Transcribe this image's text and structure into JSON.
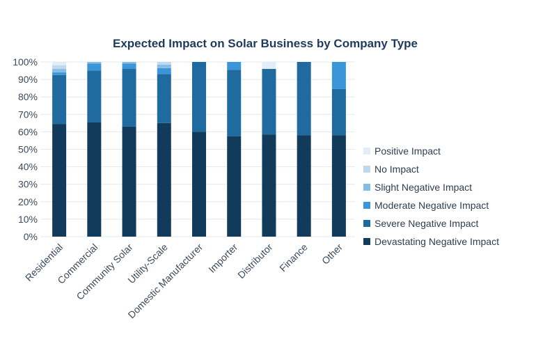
{
  "chart_data": {
    "type": "bar",
    "stacked": true,
    "title": "Expected Impact on Solar Business by Company Type",
    "xlabel": "",
    "ylabel": "",
    "ylim": [
      0,
      100
    ],
    "yticks": [
      "0%",
      "10%",
      "20%",
      "30%",
      "40%",
      "50%",
      "60%",
      "70%",
      "80%",
      "90%",
      "100%"
    ],
    "categories": [
      "Residential",
      "Commercial",
      "Community Solar",
      "Utility-Scale",
      "Domestic Manufacturer",
      "Importer",
      "Distributor",
      "Finance",
      "Other"
    ],
    "series": [
      {
        "name": "Devastating Negative Impact",
        "color": "#123a5a",
        "values": [
          64.5,
          65.5,
          63,
          65,
          60,
          57.5,
          58.5,
          58,
          58
        ]
      },
      {
        "name": "Severe Negative Impact",
        "color": "#1f6a9e",
        "values": [
          28,
          29.5,
          33,
          28,
          40,
          38,
          37.5,
          42,
          26.5
        ]
      },
      {
        "name": "Moderate Negative Impact",
        "color": "#3a96d8",
        "values": [
          1.5,
          4,
          3,
          3.5,
          0,
          4.5,
          0,
          0,
          15.5
        ]
      },
      {
        "name": "Slight Negative Impact",
        "color": "#86bde5",
        "values": [
          2,
          1,
          1,
          2,
          0,
          0,
          0,
          0,
          0
        ]
      },
      {
        "name": "No Impact",
        "color": "#bcd9ef",
        "values": [
          2,
          0,
          0,
          1.5,
          0,
          0,
          0,
          0,
          0
        ]
      },
      {
        "name": "Positive Impact",
        "color": "#e1eef8",
        "values": [
          2,
          0,
          0,
          0,
          0,
          0,
          4,
          0,
          0
        ]
      }
    ],
    "legend_order": [
      "Positive Impact",
      "No Impact",
      "Slight Negative Impact",
      "Moderate Negative Impact",
      "Severe Negative Impact",
      "Devastating Negative Impact"
    ],
    "legend_position": "right",
    "grid": true
  }
}
